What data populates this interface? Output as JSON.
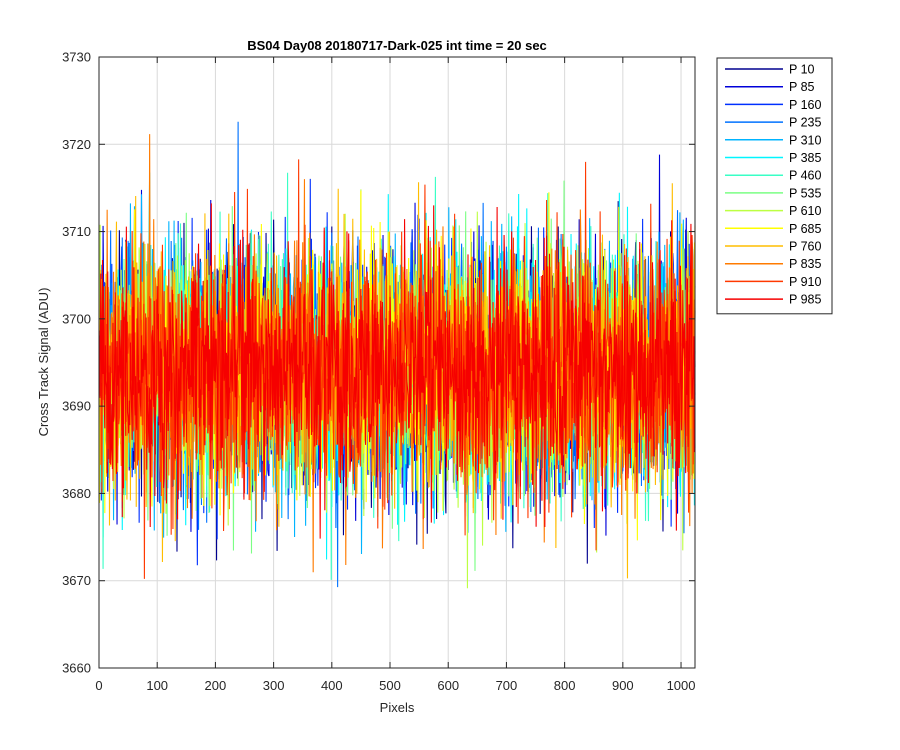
{
  "chart_data": {
    "type": "line",
    "title": "BS04 Day08 20180717-Dark-025 int time = 20 sec",
    "xlabel": "Pixels",
    "ylabel": "Cross Track Signal (ADU)",
    "xlim": [
      0,
      1024
    ],
    "ylim": [
      3660,
      3730
    ],
    "xticks": [
      0,
      100,
      200,
      300,
      400,
      500,
      600,
      700,
      800,
      900,
      1000
    ],
    "yticks": [
      3660,
      3670,
      3680,
      3690,
      3700,
      3710,
      3720,
      3730
    ],
    "grid": true,
    "legend_position": "outside-top-right",
    "pixel_count": 1024,
    "series": [
      {
        "name": "P 10",
        "color": "#00008f",
        "mean": 3694,
        "spread": 7
      },
      {
        "name": "P 85",
        "color": "#0000d9",
        "mean": 3694,
        "spread": 7
      },
      {
        "name": "P 160",
        "color": "#0030ff",
        "mean": 3694,
        "spread": 7
      },
      {
        "name": "P 235",
        "color": "#0072ff",
        "mean": 3694,
        "spread": 7
      },
      {
        "name": "P 310",
        "color": "#00b4ff",
        "mean": 3694,
        "spread": 7
      },
      {
        "name": "P 385",
        "color": "#00f6ff",
        "mean": 3694,
        "spread": 7
      },
      {
        "name": "P 460",
        "color": "#39ffc6",
        "mean": 3694,
        "spread": 7
      },
      {
        "name": "P 535",
        "color": "#7bff84",
        "mean": 3694,
        "spread": 7
      },
      {
        "name": "P 610",
        "color": "#bdff42",
        "mean": 3694,
        "spread": 7
      },
      {
        "name": "P 685",
        "color": "#ffff00",
        "mean": 3694,
        "spread": 7
      },
      {
        "name": "P 760",
        "color": "#ffbd00",
        "mean": 3694,
        "spread": 7
      },
      {
        "name": "P 835",
        "color": "#ff7b00",
        "mean": 3694,
        "spread": 7
      },
      {
        "name": "P 910",
        "color": "#ff3900",
        "mean": 3694,
        "spread": 7
      },
      {
        "name": "P 985",
        "color": "#f60000",
        "mean": 3694,
        "spread": 7
      }
    ]
  }
}
